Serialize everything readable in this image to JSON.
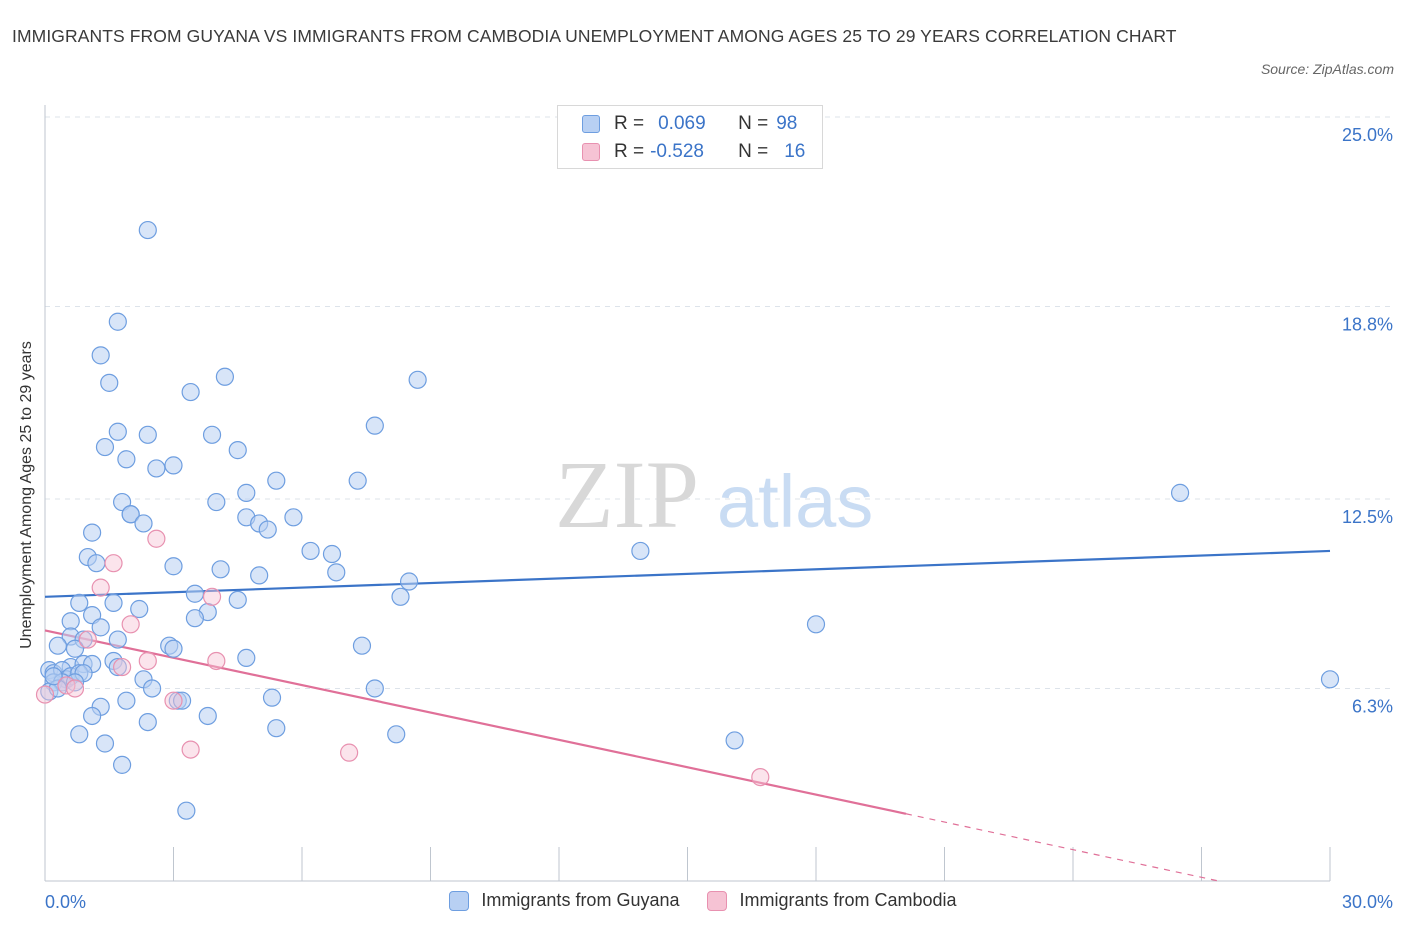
{
  "title": "IMMIGRANTS FROM GUYANA VS IMMIGRANTS FROM CAMBODIA UNEMPLOYMENT AMONG AGES 25 TO 29 YEARS CORRELATION CHART",
  "source": "Source: ZipAtlas.com",
  "watermark": {
    "zip": "ZIP",
    "atlas": "atlas"
  },
  "colors": {
    "blue": "#3b74c8",
    "blue_fill": "#b8d0f3",
    "pink": "#e07098",
    "pink_fill": "#f6c3d4",
    "grid": "#dde3ea"
  },
  "legend": {
    "rows": [
      {
        "r_label": "R =",
        "r_value": "0.069",
        "n_label": "N =",
        "n_value": "98"
      },
      {
        "r_label": "R =",
        "r_value": "-0.528",
        "n_label": "N =",
        "n_value": "16"
      }
    ]
  },
  "chart_data": {
    "type": "scatter",
    "title": "IMMIGRANTS FROM GUYANA VS IMMIGRANTS FROM CAMBODIA UNEMPLOYMENT AMONG AGES 25 TO 29 YEARS CORRELATION CHART",
    "xlabel": "",
    "ylabel": "Unemployment Among Ages 25 to 29 years",
    "xlim": [
      0,
      30
    ],
    "ylim": [
      0,
      25
    ],
    "x_tick_labels": [
      "0.0%",
      "30.0%"
    ],
    "y_ticks": [
      6.3,
      12.5,
      18.8,
      25.0
    ],
    "y_tick_labels": [
      "6.3%",
      "12.5%",
      "18.8%",
      "25.0%"
    ],
    "grid": "horizontal dashed",
    "legend_position": "bottom-center",
    "series": [
      {
        "name": "Immigrants from Guyana",
        "color": "#3b74c8",
        "points": [
          [
            2.4,
            21.3
          ],
          [
            1.7,
            18.3
          ],
          [
            1.3,
            17.2
          ],
          [
            1.5,
            16.3
          ],
          [
            4.2,
            16.5
          ],
          [
            3.4,
            16.0
          ],
          [
            8.7,
            16.4
          ],
          [
            7.7,
            14.9
          ],
          [
            1.7,
            14.7
          ],
          [
            2.4,
            14.6
          ],
          [
            3.9,
            14.6
          ],
          [
            1.4,
            14.2
          ],
          [
            4.5,
            14.1
          ],
          [
            1.9,
            13.8
          ],
          [
            2.6,
            13.5
          ],
          [
            3.0,
            13.6
          ],
          [
            5.4,
            13.1
          ],
          [
            7.3,
            13.1
          ],
          [
            4.7,
            12.7
          ],
          [
            1.8,
            12.4
          ],
          [
            4.0,
            12.4
          ],
          [
            2.0,
            12.0
          ],
          [
            2.0,
            12.0
          ],
          [
            4.7,
            11.9
          ],
          [
            5.8,
            11.9
          ],
          [
            5.0,
            11.7
          ],
          [
            2.3,
            11.7
          ],
          [
            5.2,
            11.5
          ],
          [
            1.1,
            11.4
          ],
          [
            6.2,
            10.8
          ],
          [
            13.9,
            10.8
          ],
          [
            6.7,
            10.7
          ],
          [
            1.0,
            10.6
          ],
          [
            1.2,
            10.4
          ],
          [
            3.0,
            10.3
          ],
          [
            4.1,
            10.2
          ],
          [
            6.8,
            10.1
          ],
          [
            5.0,
            10.0
          ],
          [
            8.5,
            9.8
          ],
          [
            26.5,
            12.7
          ],
          [
            3.5,
            9.4
          ],
          [
            8.3,
            9.3
          ],
          [
            4.5,
            9.2
          ],
          [
            0.8,
            9.1
          ],
          [
            1.6,
            9.1
          ],
          [
            2.2,
            8.9
          ],
          [
            3.8,
            8.8
          ],
          [
            1.1,
            8.7
          ],
          [
            3.5,
            8.6
          ],
          [
            0.6,
            8.5
          ],
          [
            1.3,
            8.3
          ],
          [
            18.0,
            8.4
          ],
          [
            0.6,
            8.0
          ],
          [
            0.9,
            7.9
          ],
          [
            1.7,
            7.9
          ],
          [
            0.3,
            7.7
          ],
          [
            0.7,
            7.6
          ],
          [
            2.9,
            7.7
          ],
          [
            3.0,
            7.6
          ],
          [
            7.4,
            7.7
          ],
          [
            4.7,
            7.3
          ],
          [
            0.6,
            7.0
          ],
          [
            0.9,
            7.1
          ],
          [
            1.1,
            7.1
          ],
          [
            1.6,
            7.2
          ],
          [
            1.7,
            7.0
          ],
          [
            0.1,
            6.9
          ],
          [
            0.2,
            6.8
          ],
          [
            0.4,
            6.9
          ],
          [
            0.5,
            6.6
          ],
          [
            0.6,
            6.7
          ],
          [
            0.8,
            6.8
          ],
          [
            0.9,
            6.8
          ],
          [
            0.2,
            6.5
          ],
          [
            0.4,
            6.5
          ],
          [
            0.7,
            6.5
          ],
          [
            0.1,
            6.2
          ],
          [
            0.3,
            6.3
          ],
          [
            2.3,
            6.6
          ],
          [
            2.5,
            6.3
          ],
          [
            7.7,
            6.3
          ],
          [
            30.0,
            6.6
          ],
          [
            1.3,
            5.7
          ],
          [
            1.9,
            5.9
          ],
          [
            3.1,
            5.9
          ],
          [
            3.2,
            5.9
          ],
          [
            5.3,
            6.0
          ],
          [
            1.1,
            5.4
          ],
          [
            3.8,
            5.4
          ],
          [
            0.8,
            4.8
          ],
          [
            2.4,
            5.2
          ],
          [
            5.4,
            5.0
          ],
          [
            1.4,
            4.5
          ],
          [
            8.2,
            4.8
          ],
          [
            16.1,
            4.6
          ],
          [
            1.8,
            3.8
          ],
          [
            3.3,
            2.3
          ],
          [
            0.2,
            6.7
          ]
        ],
        "trend": {
          "x": [
            0,
            30
          ],
          "y": [
            9.3,
            10.8
          ],
          "style": "solid"
        }
      },
      {
        "name": "Immigrants from Cambodia",
        "color": "#e07098",
        "points": [
          [
            0.0,
            6.1
          ],
          [
            0.5,
            6.4
          ],
          [
            0.7,
            6.3
          ],
          [
            1.0,
            7.9
          ],
          [
            1.3,
            9.6
          ],
          [
            1.6,
            10.4
          ],
          [
            1.8,
            7.0
          ],
          [
            2.0,
            8.4
          ],
          [
            2.4,
            7.2
          ],
          [
            2.6,
            11.2
          ],
          [
            3.0,
            5.9
          ],
          [
            3.4,
            4.3
          ],
          [
            3.9,
            9.3
          ],
          [
            4.0,
            7.2
          ],
          [
            7.1,
            4.2
          ],
          [
            16.7,
            3.4
          ]
        ],
        "trend": {
          "x": [
            0,
            20.1
          ],
          "y": [
            8.2,
            2.2
          ],
          "style": "solid",
          "dashed_to": [
            27.4,
            0.0
          ]
        }
      }
    ]
  },
  "bottom_legend": [
    {
      "label": "Immigrants from Guyana"
    },
    {
      "label": "Immigrants from Cambodia"
    }
  ]
}
